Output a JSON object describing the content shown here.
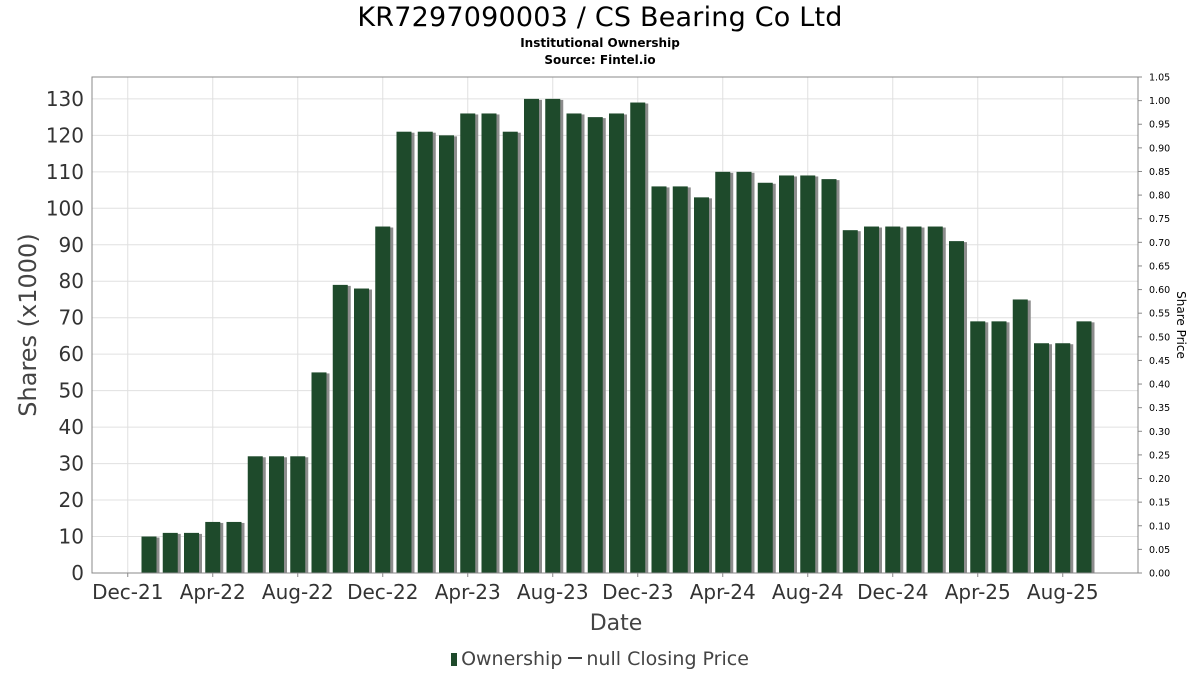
{
  "title": "KR7297090003 / CS Bearing Co Ltd",
  "subtitle_1": "Institutional Ownership",
  "subtitle_2": "Source: Fintel.io",
  "legend": {
    "ownership_label": "Ownership",
    "price_label": "null Closing Price"
  },
  "colors": {
    "bar": "#1e4a2b",
    "bar_shadow": "#8c8c8c",
    "grid": "#e0e0e0"
  },
  "chart_data": {
    "type": "bar",
    "xlabel": "Date",
    "ylabel": "Shares (x1000)",
    "y2label": "Share Price",
    "ylim": [
      0,
      136
    ],
    "y2lim": [
      0,
      1.05
    ],
    "yticks": [
      0,
      10,
      20,
      30,
      40,
      50,
      60,
      70,
      80,
      90,
      100,
      110,
      120,
      130
    ],
    "y2ticks": [
      "0.00",
      "0.05",
      "0.10",
      "0.15",
      "0.20",
      "0.25",
      "0.30",
      "0.35",
      "0.40",
      "0.45",
      "0.50",
      "0.55",
      "0.60",
      "0.65",
      "0.70",
      "0.75",
      "0.80",
      "0.85",
      "0.90",
      "0.95",
      "1.00",
      "1.05"
    ],
    "xticks": [
      "Dec-21",
      "Apr-22",
      "Aug-22",
      "Dec-22",
      "Apr-23",
      "Aug-23",
      "Dec-23",
      "Apr-24",
      "Aug-24",
      "Dec-24",
      "Apr-25",
      "Aug-25"
    ],
    "grid": true,
    "legend_position": "bottom",
    "series": [
      {
        "name": "Ownership",
        "values": [
          10,
          11,
          11,
          14,
          14,
          32,
          32,
          32,
          55,
          79,
          78,
          95,
          121,
          121,
          120,
          126,
          126,
          121,
          130,
          130,
          126,
          125,
          126,
          129,
          106,
          106,
          103,
          110,
          110,
          107,
          109,
          109,
          108,
          94,
          95,
          95,
          95,
          95,
          91,
          69,
          69,
          75,
          63,
          63,
          69
        ]
      }
    ]
  }
}
